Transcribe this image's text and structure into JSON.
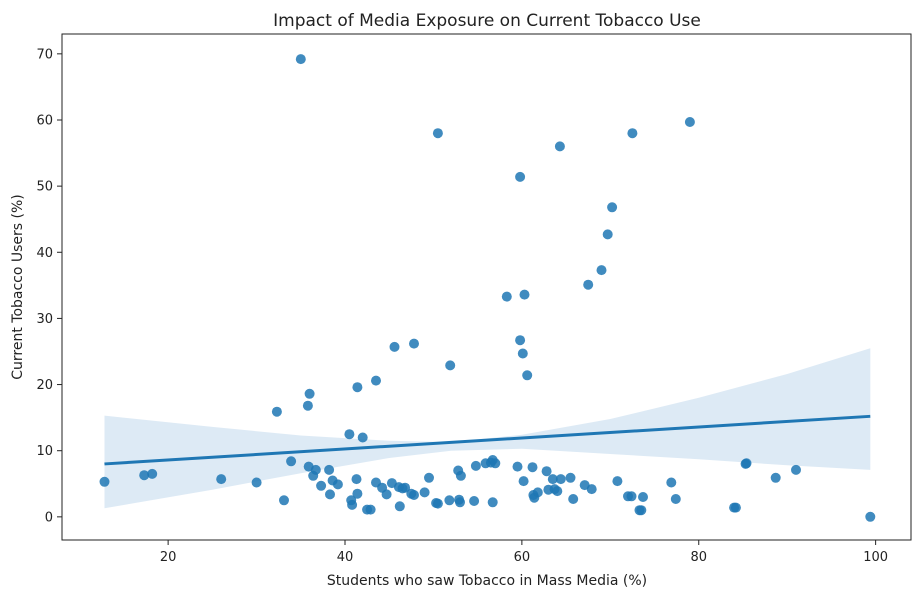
{
  "chart_data": {
    "type": "scatter",
    "title": "Impact of Media Exposure on Current Tobacco Use",
    "xlabel": "Students who saw Tobacco in Mass Media (%)",
    "ylabel": "Current Tobacco Users (%)",
    "xlim": [
      8,
      104
    ],
    "ylim": [
      -3.5,
      73
    ],
    "xticks": [
      20,
      40,
      60,
      80,
      100
    ],
    "yticks": [
      0,
      10,
      20,
      30,
      40,
      50,
      60,
      70
    ],
    "grid": false,
    "legend": "none",
    "colors": {
      "points": "#1f77b4",
      "line": "#1f77b4",
      "band": "#c6dcef"
    },
    "points": [
      [
        35.0,
        69.2
      ],
      [
        50.5,
        58.0
      ],
      [
        72.5,
        58.0
      ],
      [
        79.0,
        59.7
      ],
      [
        64.3,
        56.0
      ],
      [
        59.8,
        51.4
      ],
      [
        70.2,
        46.8
      ],
      [
        69.7,
        42.7
      ],
      [
        69.0,
        37.3
      ],
      [
        67.5,
        35.1
      ],
      [
        58.3,
        33.3
      ],
      [
        60.3,
        33.6
      ],
      [
        59.8,
        26.7
      ],
      [
        60.1,
        24.7
      ],
      [
        60.6,
        21.4
      ],
      [
        45.6,
        25.7
      ],
      [
        47.8,
        26.2
      ],
      [
        51.9,
        22.9
      ],
      [
        43.5,
        20.6
      ],
      [
        41.4,
        19.6
      ],
      [
        36.0,
        18.6
      ],
      [
        35.8,
        16.8
      ],
      [
        32.3,
        15.9
      ],
      [
        40.5,
        12.5
      ],
      [
        42.0,
        12.0
      ],
      [
        12.8,
        5.3
      ],
      [
        17.3,
        6.3
      ],
      [
        18.2,
        6.5
      ],
      [
        26.0,
        5.7
      ],
      [
        30.0,
        5.2
      ],
      [
        33.1,
        2.5
      ],
      [
        33.9,
        8.4
      ],
      [
        35.9,
        7.6
      ],
      [
        36.4,
        6.2
      ],
      [
        36.7,
        7.1
      ],
      [
        37.3,
        4.7
      ],
      [
        38.2,
        7.1
      ],
      [
        38.3,
        3.4
      ],
      [
        38.6,
        5.5
      ],
      [
        39.2,
        4.9
      ],
      [
        40.7,
        2.5
      ],
      [
        40.8,
        1.8
      ],
      [
        41.3,
        5.7
      ],
      [
        41.4,
        3.5
      ],
      [
        42.5,
        1.1
      ],
      [
        42.9,
        1.1
      ],
      [
        43.5,
        5.2
      ],
      [
        44.2,
        4.4
      ],
      [
        44.7,
        3.4
      ],
      [
        45.3,
        5.1
      ],
      [
        46.2,
        1.6
      ],
      [
        46.1,
        4.5
      ],
      [
        46.5,
        4.3
      ],
      [
        46.8,
        4.4
      ],
      [
        47.5,
        3.5
      ],
      [
        47.8,
        3.3
      ],
      [
        49.0,
        3.7
      ],
      [
        49.5,
        5.9
      ],
      [
        50.3,
        2.1
      ],
      [
        50.5,
        2.0
      ],
      [
        51.8,
        2.5
      ],
      [
        52.8,
        7.0
      ],
      [
        52.9,
        2.6
      ],
      [
        53.0,
        2.2
      ],
      [
        53.1,
        6.2
      ],
      [
        54.6,
        2.4
      ],
      [
        54.8,
        7.7
      ],
      [
        55.9,
        8.1
      ],
      [
        56.5,
        8.2
      ],
      [
        56.7,
        8.6
      ],
      [
        57.0,
        8.1
      ],
      [
        56.7,
        2.2
      ],
      [
        59.5,
        7.6
      ],
      [
        60.2,
        5.4
      ],
      [
        61.2,
        7.5
      ],
      [
        61.3,
        3.3
      ],
      [
        61.4,
        2.9
      ],
      [
        61.8,
        3.7
      ],
      [
        62.8,
        6.9
      ],
      [
        63.0,
        4.1
      ],
      [
        63.5,
        5.7
      ],
      [
        63.7,
        4.2
      ],
      [
        64.0,
        3.9
      ],
      [
        64.4,
        5.7
      ],
      [
        65.5,
        5.9
      ],
      [
        65.8,
        2.7
      ],
      [
        67.1,
        4.8
      ],
      [
        67.9,
        4.2
      ],
      [
        70.8,
        5.4
      ],
      [
        72.0,
        3.1
      ],
      [
        72.4,
        3.1
      ],
      [
        73.3,
        1.0
      ],
      [
        73.5,
        1.0
      ],
      [
        73.7,
        3.0
      ],
      [
        76.9,
        5.2
      ],
      [
        77.4,
        2.7
      ],
      [
        84.0,
        1.4
      ],
      [
        84.2,
        1.4
      ],
      [
        85.3,
        8.0
      ],
      [
        85.4,
        8.1
      ],
      [
        88.7,
        5.9
      ],
      [
        91.0,
        7.1
      ],
      [
        99.4,
        0.0
      ]
    ],
    "regression": {
      "x": [
        12.8,
        99.4
      ],
      "y": [
        8.0,
        15.2
      ],
      "ci_upper": [
        [
          12.8,
          15.3
        ],
        [
          25,
          13.6
        ],
        [
          35,
          12.3
        ],
        [
          45,
          11.5
        ],
        [
          52,
          11.3
        ],
        [
          60,
          12.4
        ],
        [
          70,
          14.8
        ],
        [
          80,
          18.0
        ],
        [
          90,
          21.6
        ],
        [
          99.4,
          25.5
        ]
      ],
      "ci_lower": [
        [
          12.8,
          1.3
        ],
        [
          25,
          4.1
        ],
        [
          35,
          6.6
        ],
        [
          45,
          8.9
        ],
        [
          52,
          10.0
        ],
        [
          60,
          10.3
        ],
        [
          70,
          9.5
        ],
        [
          80,
          8.7
        ],
        [
          90,
          7.8
        ],
        [
          99.4,
          7.1
        ]
      ]
    }
  }
}
